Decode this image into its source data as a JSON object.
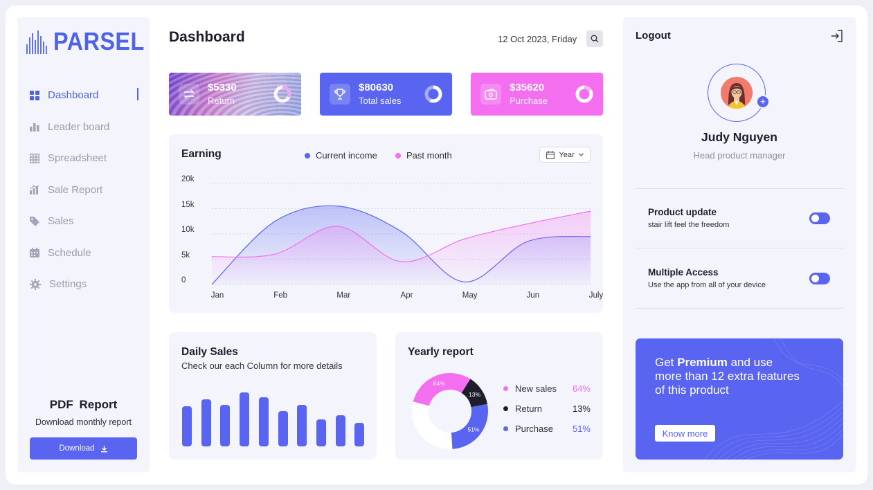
{
  "app": {
    "logo_text": "PARSEL"
  },
  "sidebar": {
    "items": [
      {
        "label": "Dashboard",
        "icon": "grid-icon",
        "active": true
      },
      {
        "label": "Leader board",
        "icon": "bar-chart-icon"
      },
      {
        "label": "Spreadsheet",
        "icon": "table-icon"
      },
      {
        "label": "Sale Report",
        "icon": "report-icon"
      },
      {
        "label": "Sales",
        "icon": "tag-icon"
      },
      {
        "label": "Schedule",
        "icon": "calendar-icon"
      },
      {
        "label": "Settings",
        "icon": "gear-icon"
      }
    ],
    "pdf": {
      "title": "PDF  Report",
      "subtitle": "Download monthly report",
      "button": "Download"
    }
  },
  "header": {
    "title": "Dashboard",
    "date": "12 Oct 2023, Friday"
  },
  "stats": [
    {
      "value": "$5330",
      "label": "Return"
    },
    {
      "value": "$80630",
      "label": "Total sales"
    },
    {
      "value": "$35620",
      "label": "Purchase"
    }
  ],
  "earning": {
    "title": "Earning",
    "legend": [
      "Current income",
      "Past month"
    ],
    "period": "Year",
    "colors": {
      "current": "#5964f0",
      "past": "#f36ff0"
    }
  },
  "chart_data": [
    {
      "type": "area",
      "title": "Earning",
      "categories": [
        "Jan",
        "Feb",
        "Mar",
        "Apr",
        "May",
        "Jun",
        "July"
      ],
      "yticks": [
        "20k",
        "15k",
        "10k",
        "5k",
        "0"
      ],
      "ylim": [
        0,
        20000
      ],
      "series": [
        {
          "name": "Current income",
          "values": [
            0,
            12500,
            15500,
            10500,
            500,
            8500,
            9500
          ]
        },
        {
          "name": "Past month",
          "values": [
            5500,
            6000,
            11500,
            4500,
            9000,
            12000,
            14500
          ]
        }
      ]
    },
    {
      "type": "bar",
      "title": "Daily Sales",
      "values": [
        58,
        68,
        60,
        78,
        71,
        51,
        60,
        39,
        45,
        34
      ]
    },
    {
      "type": "pie",
      "title": "Yearly report",
      "labels": [
        "New sales",
        "Return",
        "Purchase"
      ],
      "values": [
        64,
        13,
        51
      ]
    }
  ],
  "daily": {
    "title": "Daily Sales",
    "subtitle": "Check our each Column for more details"
  },
  "yearly": {
    "title": "Yearly report",
    "items": [
      {
        "label": "New sales",
        "pct": "64%",
        "color": "#f36ff0"
      },
      {
        "label": "Return",
        "pct": "13%",
        "color": "#1d1d2b"
      },
      {
        "label": "Purchase",
        "pct": "51%",
        "color": "#5964f0"
      }
    ]
  },
  "profile": {
    "logout": "Logout",
    "name": "Judy Nguyen",
    "role": "Head product manager",
    "settings": [
      {
        "title": "Product update",
        "subtitle": "stair lift feel the freedom",
        "on": true
      },
      {
        "title": "Multiple Access",
        "subtitle": "Use the app from all of your device",
        "on": true
      }
    ],
    "premium": {
      "pre": "Get ",
      "bold": "Premium",
      "post": " and use more than 12 extra features of this product",
      "button": "Know more"
    }
  }
}
